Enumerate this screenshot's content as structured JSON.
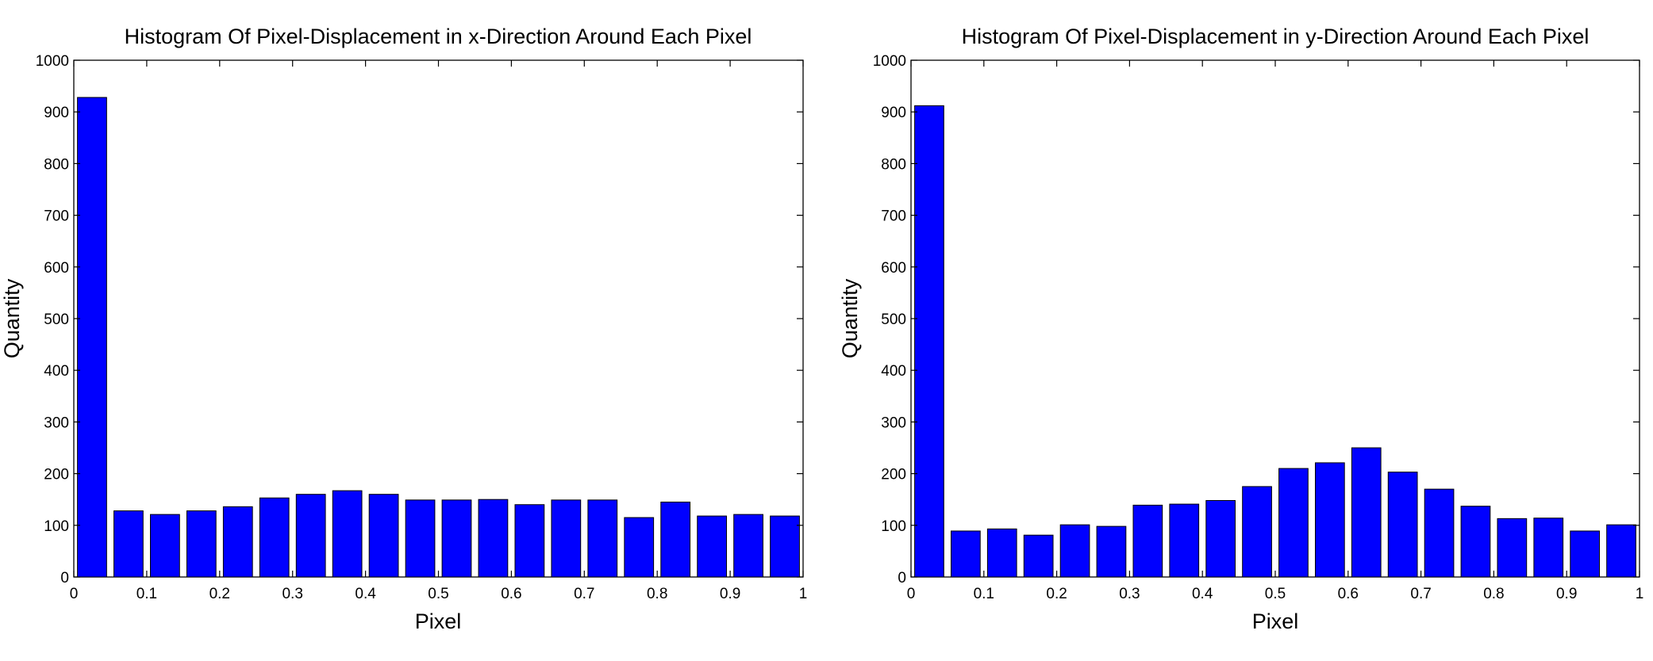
{
  "chart_data": [
    {
      "type": "bar",
      "title": "Histogram Of Pixel-Displacement in x-Direction Around Each Pixel",
      "xlabel": "Pixel",
      "ylabel": "Quantity",
      "xlim": [
        0,
        1
      ],
      "ylim": [
        0,
        1000
      ],
      "bar_color": "#0000ff",
      "x_ticks": [
        {
          "value": 0,
          "label": "0"
        },
        {
          "value": 0.1,
          "label": "0.1"
        },
        {
          "value": 0.2,
          "label": "0.2"
        },
        {
          "value": 0.3,
          "label": "0.3"
        },
        {
          "value": 0.4,
          "label": "0.4"
        },
        {
          "value": 0.5,
          "label": "0.5"
        },
        {
          "value": 0.6,
          "label": "0.6"
        },
        {
          "value": 0.7,
          "label": "0.7"
        },
        {
          "value": 0.8,
          "label": "0.8"
        },
        {
          "value": 0.9,
          "label": "0.9"
        },
        {
          "value": 1,
          "label": "1"
        }
      ],
      "y_ticks": [
        {
          "value": 0,
          "label": "0"
        },
        {
          "value": 100,
          "label": "100"
        },
        {
          "value": 200,
          "label": "200"
        },
        {
          "value": 300,
          "label": "300"
        },
        {
          "value": 400,
          "label": "400"
        },
        {
          "value": 500,
          "label": "500"
        },
        {
          "value": 600,
          "label": "600"
        },
        {
          "value": 700,
          "label": "700"
        },
        {
          "value": 800,
          "label": "800"
        },
        {
          "value": 900,
          "label": "900"
        },
        {
          "value": 1000,
          "label": "1000"
        }
      ],
      "x": [
        0.025,
        0.075,
        0.125,
        0.175,
        0.225,
        0.275,
        0.325,
        0.375,
        0.425,
        0.475,
        0.525,
        0.575,
        0.625,
        0.675,
        0.725,
        0.775,
        0.825,
        0.875,
        0.925,
        0.975
      ],
      "values": [
        928,
        128,
        121,
        128,
        136,
        153,
        160,
        167,
        160,
        149,
        149,
        150,
        140,
        149,
        149,
        115,
        145,
        118,
        121,
        118
      ]
    },
    {
      "type": "bar",
      "title": "Histogram Of Pixel-Displacement in y-Direction Around Each Pixel",
      "xlabel": "Pixel",
      "ylabel": "Quantity",
      "xlim": [
        0,
        1
      ],
      "ylim": [
        0,
        1000
      ],
      "bar_color": "#0000ff",
      "x_ticks": [
        {
          "value": 0,
          "label": "0"
        },
        {
          "value": 0.1,
          "label": "0.1"
        },
        {
          "value": 0.2,
          "label": "0.2"
        },
        {
          "value": 0.3,
          "label": "0.3"
        },
        {
          "value": 0.4,
          "label": "0.4"
        },
        {
          "value": 0.5,
          "label": "0.5"
        },
        {
          "value": 0.6,
          "label": "0.6"
        },
        {
          "value": 0.7,
          "label": "0.7"
        },
        {
          "value": 0.8,
          "label": "0.8"
        },
        {
          "value": 0.9,
          "label": "0.9"
        },
        {
          "value": 1,
          "label": "1"
        }
      ],
      "y_ticks": [
        {
          "value": 0,
          "label": "0"
        },
        {
          "value": 100,
          "label": "100"
        },
        {
          "value": 200,
          "label": "200"
        },
        {
          "value": 300,
          "label": "300"
        },
        {
          "value": 400,
          "label": "400"
        },
        {
          "value": 500,
          "label": "500"
        },
        {
          "value": 600,
          "label": "600"
        },
        {
          "value": 700,
          "label": "700"
        },
        {
          "value": 800,
          "label": "800"
        },
        {
          "value": 900,
          "label": "900"
        },
        {
          "value": 1000,
          "label": "1000"
        }
      ],
      "x": [
        0.025,
        0.075,
        0.125,
        0.175,
        0.225,
        0.275,
        0.325,
        0.375,
        0.425,
        0.475,
        0.525,
        0.575,
        0.625,
        0.675,
        0.725,
        0.775,
        0.825,
        0.875,
        0.925,
        0.975
      ],
      "values": [
        912,
        89,
        93,
        81,
        101,
        98,
        139,
        141,
        148,
        175,
        210,
        221,
        250,
        203,
        170,
        137,
        113,
        114,
        89,
        101
      ]
    }
  ]
}
